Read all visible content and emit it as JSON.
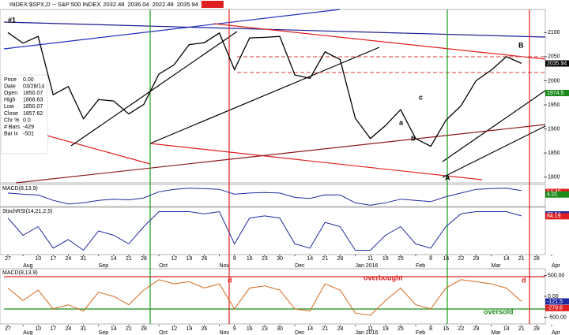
{
  "chart_data": [
    {
      "type": "line",
      "title": "INDEX:$SPX,D -- S&P 500 INDEX",
      "readout": [
        2032.48,
        2036.04,
        2022.49,
        2035.94
      ],
      "info": [
        {
          "label": "Price",
          "value": "0.00"
        },
        {
          "label": "Date",
          "value": "03/28/14"
        },
        {
          "label": "Open",
          "value": "1850.07"
        },
        {
          "label": "High",
          "value": "1866.63"
        },
        {
          "label": "Low",
          "value": "1850.07"
        },
        {
          "label": "Close",
          "value": "1857.62"
        },
        {
          "label": "Chr %",
          "value": "0.0"
        },
        {
          "label": "# Bars",
          "value": "-429"
        },
        {
          "label": "Bar ix",
          "value": "-501"
        }
      ],
      "categories": [
        "27",
        "Aug",
        "10",
        "17",
        "24",
        "31",
        "Sep",
        "14",
        "21",
        "28",
        "Oct",
        "12",
        "19",
        "26",
        "Nov",
        "9",
        "16",
        "23",
        "30",
        "Dec",
        "14",
        "21",
        "28",
        "Jan 2016",
        "11",
        "19",
        "25",
        "Feb",
        "8",
        "16",
        "22",
        "29",
        "Mar",
        "14",
        "21",
        "28",
        "Apr"
      ],
      "series": [
        {
          "color": "#000000",
          "values": [
            2100,
            2078,
            2092,
            1971,
            1988,
            1921,
            1961,
            1958,
            1931,
            1951,
            2014,
            2033,
            2075,
            2079,
            2099,
            2023,
            2089,
            2090,
            2092,
            2012,
            2005,
            2060,
            2044,
            1922,
            1880,
            1907,
            1940,
            1880,
            1864,
            1918,
            1948,
            2000,
            2022,
            2050,
            2036,
            null,
            null
          ]
        }
      ],
      "ylim": [
        1788,
        2148
      ],
      "yticks": [
        1800,
        1850,
        1900,
        1950,
        2000,
        2050,
        2100
      ],
      "tags": [
        {
          "value": 2035.94,
          "color": "#000000"
        },
        {
          "value": 1974.5,
          "color": "#1a8a1a"
        }
      ],
      "annotations": [
        "#1",
        "B",
        "A",
        "c",
        "a",
        "b"
      ]
    },
    {
      "type": "line",
      "title": "MACD(8,13,9)",
      "series": [
        {
          "color": "#1f2a9e",
          "values": [
            10,
            5,
            2,
            -20,
            -35,
            -30,
            -20,
            -15,
            -18,
            -10,
            15,
            25,
            30,
            28,
            25,
            5,
            10,
            12,
            10,
            -8,
            -12,
            3,
            2,
            -30,
            -40,
            -30,
            -15,
            -20,
            -25,
            -5,
            10,
            25,
            28,
            30,
            20,
            null,
            null
          ]
        }
      ],
      "ylim": [
        -45,
        45
      ],
      "tags": [
        {
          "value": 14.4,
          "label": "14.40",
          "color": "#e02020"
        },
        {
          "value": 4.01,
          "color": "#1a8a1a"
        }
      ]
    },
    {
      "type": "line",
      "title": "StochRSI(14,21,2,5)",
      "series": [
        {
          "color": "#1f2a9e",
          "values": [
            80,
            40,
            60,
            10,
            30,
            5,
            50,
            40,
            20,
            60,
            95,
            95,
            95,
            90,
            95,
            20,
            80,
            85,
            80,
            20,
            10,
            70,
            60,
            5,
            5,
            40,
            60,
            20,
            10,
            60,
            90,
            95,
            95,
            95,
            85,
            null,
            null
          ]
        }
      ],
      "ylim": [
        -5,
        105
      ],
      "tags": [
        {
          "value": 88.54,
          "color": "#1f2a9e"
        },
        {
          "value": 84.19,
          "color": "#e02020"
        }
      ]
    },
    {
      "type": "line",
      "title": "MACD(8,13,9)",
      "series": [
        {
          "color": "#d2691e",
          "values": [
            200,
            -100,
            150,
            -300,
            -200,
            -350,
            100,
            0,
            -200,
            150,
            400,
            300,
            350,
            200,
            300,
            -300,
            200,
            250,
            150,
            -300,
            -350,
            300,
            150,
            -400,
            -450,
            -100,
            200,
            -200,
            -300,
            200,
            400,
            350,
            300,
            200,
            -121,
            null,
            null
          ]
        }
      ],
      "ylim": [
        -660,
        660
      ],
      "yticks": [
        {
          "value": 500,
          "label": "500.00"
        },
        {
          "value": 0,
          "label": "0.00"
        },
        {
          "value": -500,
          "label": "-500.00"
        }
      ],
      "tags": [
        {
          "value": -121.5,
          "color": "#1f2a9e"
        },
        {
          "value": -279.6,
          "color": "#e02020"
        }
      ],
      "annotations": [
        "d",
        "d",
        "overbought",
        "oversold"
      ]
    }
  ]
}
